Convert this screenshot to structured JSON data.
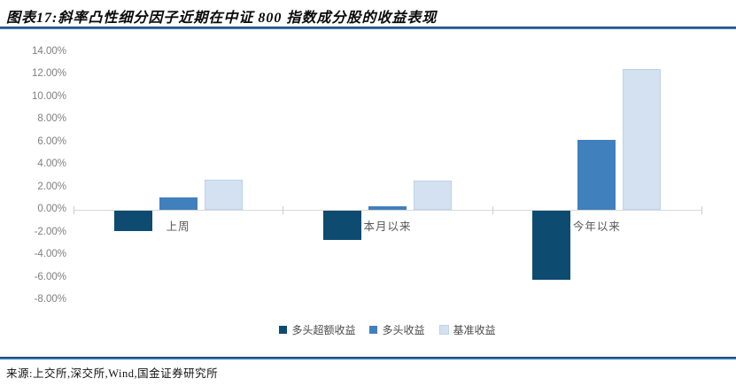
{
  "header": {
    "title": "图表17:斜率凸性细分因子近期在中证 800 指数成分股的收益表现"
  },
  "footer": {
    "source": "来源:上交所,深交所,Wind,国金证券研究所"
  },
  "colors": {
    "accent_rule_blue": "#2e74b5",
    "rule_dark_edge": "#1f3a5f",
    "axis_line": "#d9d9d9",
    "tick_label_gray": "#7f7f7f",
    "category_label_gray": "#595959",
    "dark_blue_series": "#0e4b70",
    "medium_blue_series": "#4080bd",
    "light_blue_series": "#d3e1f1"
  },
  "chart_data": {
    "type": "bar",
    "title": "图表17:斜率凸性细分因子近期在中证 800 指数成分股的收益表现",
    "categories": [
      "上周",
      "本月以来",
      "今年以来"
    ],
    "series": [
      {
        "name": "多头超额收益",
        "color": "#0e4b70",
        "values": [
          -1.8,
          -2.6,
          -6.1
        ]
      },
      {
        "name": "多头收益",
        "color": "#4080bd",
        "values": [
          1.1,
          0.3,
          6.2
        ]
      },
      {
        "name": "基准收益",
        "color": "#d3e1f1",
        "values": [
          2.7,
          2.6,
          12.5
        ]
      }
    ],
    "xlabel": "",
    "ylabel": "",
    "ylim": [
      -8,
      14
    ],
    "y_tick_values": [
      14,
      12,
      10,
      8,
      6,
      4,
      2,
      0,
      -2,
      -4,
      -6,
      -8
    ],
    "y_ticks": [
      "14.00%",
      "12.00%",
      "10.00%",
      "8.00%",
      "6.00%",
      "4.00%",
      "2.00%",
      "0.00%",
      "-2.00%",
      "-4.00%",
      "-6.00%",
      "-8.00%"
    ],
    "grid": false,
    "legend_position": "bottom"
  }
}
